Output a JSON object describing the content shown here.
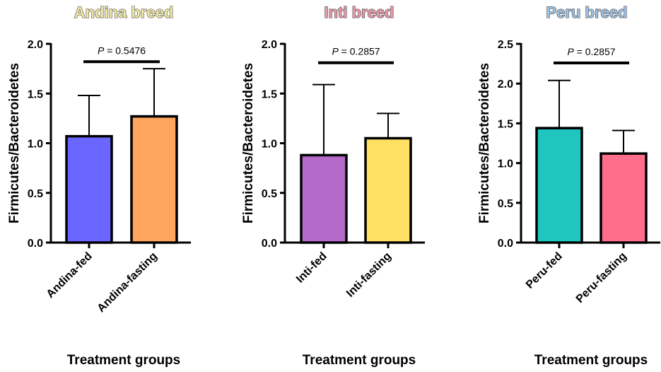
{
  "chart_data": [
    {
      "type": "bar",
      "title": "Andina breed",
      "title_color": "#f2e9a6",
      "xlabel": "Treatment groups",
      "ylabel": "Firmicutes/Bacteroidetes",
      "ylim": [
        0,
        2.0
      ],
      "yticks": [
        "0.0",
        "0.5",
        "1.0",
        "1.5",
        "2.0"
      ],
      "categories": [
        "Andina-fed",
        "Andina-fasting"
      ],
      "values": [
        1.07,
        1.27
      ],
      "errors_upper": [
        1.48,
        1.75
      ],
      "colors": [
        "#6b66ff",
        "#ffa45c"
      ],
      "p_prefix": "P",
      "p_text": " = 0.5476",
      "p_line_value": 1.82
    },
    {
      "type": "bar",
      "title": "Inti breed",
      "title_color": "#e89aaa",
      "xlabel": "Treatment groups",
      "ylabel": "Firmicutes/Bacteroidetes",
      "ylim": [
        0,
        2.0
      ],
      "yticks": [
        "0.0",
        "0.5",
        "1.0",
        "1.5",
        "2.0"
      ],
      "categories": [
        "Inti-fed",
        "Inti-fasting"
      ],
      "values": [
        0.88,
        1.05
      ],
      "errors_upper": [
        1.59,
        1.3
      ],
      "colors": [
        "#b569c9",
        "#ffe063"
      ],
      "p_prefix": "P",
      "p_text": " = 0.2857",
      "p_line_value": 1.81
    },
    {
      "type": "bar",
      "title": "Peru breed",
      "title_color": "#9fc0e0",
      "xlabel": "Treatment groups",
      "ylabel": "Firmicutes/Bacteroidetes",
      "ylim": [
        0,
        2.5
      ],
      "yticks": [
        "0.0",
        "0.5",
        "1.0",
        "1.5",
        "2.0",
        "2.5"
      ],
      "categories": [
        "Peru-fed",
        "Peru-fasting"
      ],
      "values": [
        1.44,
        1.12
      ],
      "errors_upper": [
        2.04,
        1.41
      ],
      "colors": [
        "#1fc6c0",
        "#ff6e8a"
      ],
      "p_prefix": "P",
      "p_text": " = 0.2857",
      "p_line_value": 2.26
    }
  ]
}
